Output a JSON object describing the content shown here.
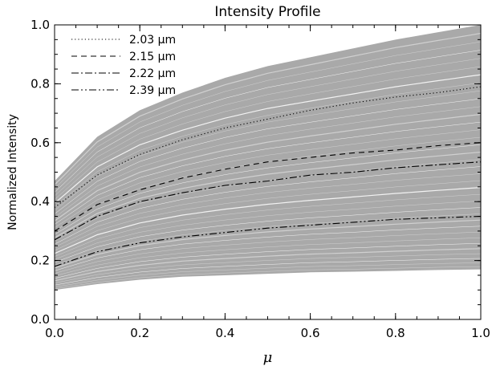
{
  "chart_data": {
    "type": "line",
    "title": "Intensity Profile",
    "xlabel": "μ",
    "ylabel": "Normalized Intensity",
    "xlim": [
      0.0,
      1.0
    ],
    "ylim": [
      0.0,
      1.0
    ],
    "x_ticks": [
      "0.0",
      "0.2",
      "0.4",
      "0.6",
      "0.8",
      "1.0"
    ],
    "y_ticks": [
      "0.0",
      "0.2",
      "0.4",
      "0.6",
      "0.8",
      "1.0"
    ],
    "x_tick_values": [
      0.0,
      0.2,
      0.4,
      0.6,
      0.8,
      1.0
    ],
    "y_tick_values": [
      0.0,
      0.2,
      0.4,
      0.6,
      0.8,
      1.0
    ],
    "legend_position": "top-left",
    "grid": false,
    "background_band": {
      "color": "#a9a9a9",
      "upper": {
        "x": [
          0.0,
          0.1,
          0.2,
          0.3,
          0.4,
          0.5,
          0.6,
          0.7,
          0.8,
          0.9,
          1.0
        ],
        "y": [
          0.47,
          0.62,
          0.71,
          0.77,
          0.82,
          0.86,
          0.89,
          0.92,
          0.95,
          0.975,
          1.0
        ]
      },
      "lower": {
        "x": [
          0.0,
          0.1,
          0.2,
          0.3,
          0.4,
          0.5,
          0.6,
          0.7,
          0.8,
          0.9,
          1.0
        ],
        "y": [
          0.1,
          0.12,
          0.135,
          0.145,
          0.15,
          0.155,
          0.16,
          0.162,
          0.165,
          0.168,
          0.17
        ]
      }
    },
    "series": [
      {
        "name": "2.03 μm",
        "dash": "dotted",
        "x": [
          0.0,
          0.1,
          0.2,
          0.3,
          0.4,
          0.5,
          0.6,
          0.7,
          0.8,
          0.9,
          1.0
        ],
        "y": [
          0.38,
          0.49,
          0.56,
          0.61,
          0.65,
          0.68,
          0.71,
          0.735,
          0.755,
          0.77,
          0.79
        ]
      },
      {
        "name": "2.15 μm",
        "dash": "dashed",
        "x": [
          0.0,
          0.1,
          0.2,
          0.3,
          0.4,
          0.5,
          0.6,
          0.7,
          0.8,
          0.9,
          1.0
        ],
        "y": [
          0.3,
          0.39,
          0.44,
          0.48,
          0.51,
          0.535,
          0.55,
          0.565,
          0.575,
          0.59,
          0.6
        ]
      },
      {
        "name": "2.22 μm",
        "dash": "dash-dot",
        "x": [
          0.0,
          0.1,
          0.2,
          0.3,
          0.4,
          0.5,
          0.6,
          0.7,
          0.8,
          0.9,
          1.0
        ],
        "y": [
          0.27,
          0.35,
          0.4,
          0.43,
          0.455,
          0.47,
          0.49,
          0.5,
          0.515,
          0.525,
          0.535
        ]
      },
      {
        "name": "2.39 μm",
        "dash": "dash-dot-dot",
        "x": [
          0.0,
          0.1,
          0.2,
          0.3,
          0.4,
          0.5,
          0.6,
          0.7,
          0.8,
          0.9,
          1.0
        ],
        "y": [
          0.18,
          0.23,
          0.26,
          0.28,
          0.295,
          0.31,
          0.32,
          0.33,
          0.34,
          0.345,
          0.35
        ]
      }
    ]
  }
}
